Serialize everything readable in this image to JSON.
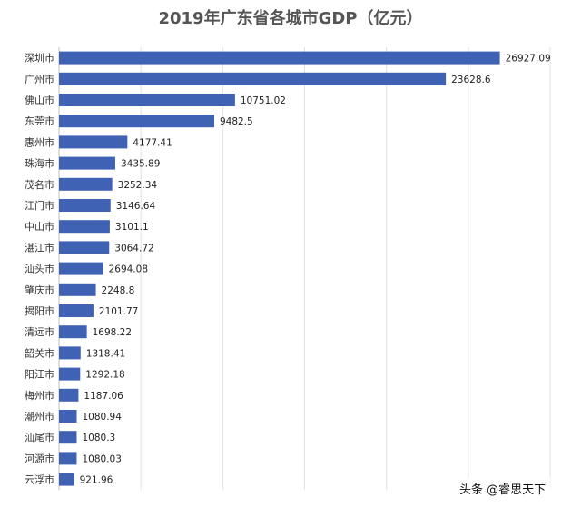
{
  "chart_data": {
    "type": "bar",
    "orientation": "horizontal",
    "title": "2019年广东省各城市GDP（亿元）",
    "categories": [
      "深圳市",
      "广州市",
      "佛山市",
      "东莞市",
      "惠州市",
      "珠海市",
      "茂名市",
      "江门市",
      "中山市",
      "湛江市",
      "汕头市",
      "肇庆市",
      "揭阳市",
      "清远市",
      "韶关市",
      "阳江市",
      "梅州市",
      "潮州市",
      "汕尾市",
      "河源市",
      "云浮市"
    ],
    "values": [
      26927.09,
      23628.6,
      10751.02,
      9482.5,
      4177.41,
      3435.89,
      3252.34,
      3146.64,
      3101.1,
      3064.72,
      2694.08,
      2248.8,
      2101.77,
      1698.22,
      1318.41,
      1292.18,
      1187.06,
      1080.94,
      1080.3,
      1080.03,
      921.96
    ],
    "value_labels": [
      "26927.09",
      "23628.6",
      "10751.02",
      "9482.5",
      "4177.41",
      "3435.89",
      "3252.34",
      "3146.64",
      "3101.1",
      "3064.72",
      "2694.08",
      "2248.8",
      "2101.77",
      "1698.22",
      "1318.41",
      "1292.18",
      "1187.06",
      "1080.94",
      "1080.3",
      "1080.03",
      "921.96"
    ],
    "xlim": [
      0,
      30000
    ],
    "grid": true,
    "bar_color": "#3f62b5"
  },
  "watermark": "头条 @睿思天下"
}
